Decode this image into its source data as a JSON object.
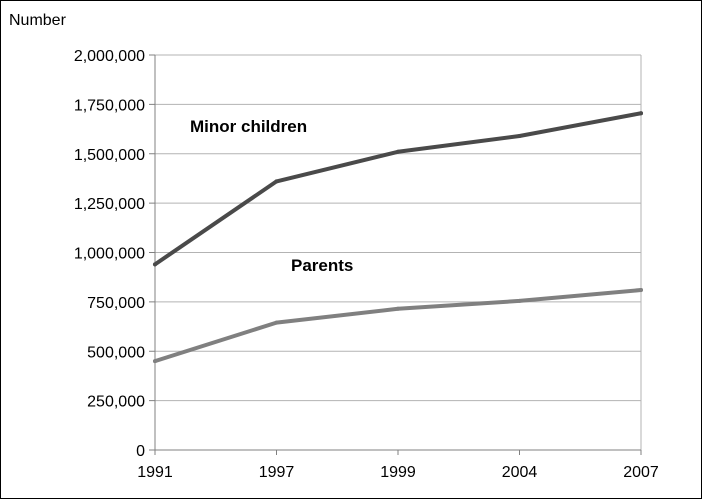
{
  "chart_data": {
    "type": "line",
    "title": "",
    "xlabel": "",
    "ylabel": "Number",
    "x": [
      "1991",
      "1997",
      "1999",
      "2004",
      "2007"
    ],
    "ylim": [
      0,
      2000000
    ],
    "y_ticks": [
      "0",
      "250,000",
      "500,000",
      "750,000",
      "1,000,000",
      "1,250,000",
      "1,500,000",
      "1,750,000",
      "2,000,000"
    ],
    "grid": true,
    "series": [
      {
        "name": "Minor children",
        "color": "#4a4a4a",
        "values": [
          940000,
          1360000,
          1510000,
          1590000,
          1705000
        ]
      },
      {
        "name": "Parents",
        "color": "#808080",
        "values": [
          450000,
          645000,
          715000,
          755000,
          810000
        ]
      }
    ]
  }
}
